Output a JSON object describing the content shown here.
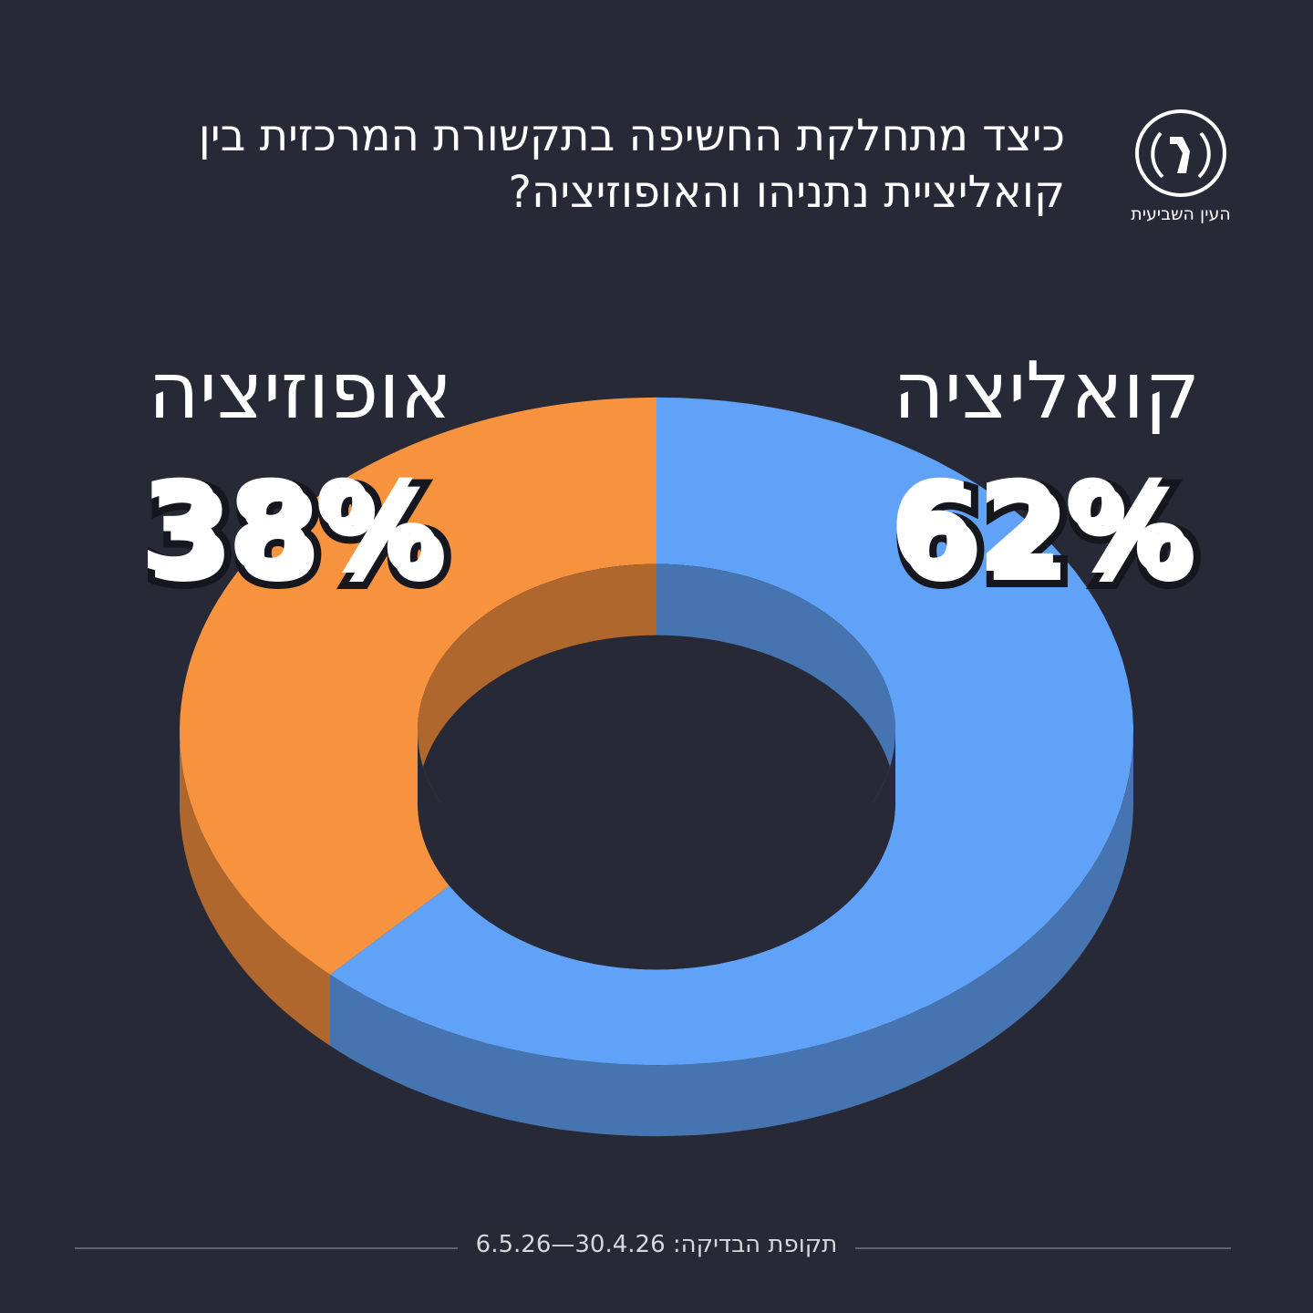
{
  "title_line1": "כיצד מתחלקת החשיפה בתקשורת המרכזית בין",
  "title_line2": "קואליציית נתניהו והאופוזיציה?",
  "logo_text": "העין השביעית",
  "footer": {
    "label": "תקופת הבדיקה:",
    "range": "30.4.26—6.5.26"
  },
  "colors": {
    "background": "#282936",
    "coalition_top": "#60a2f7",
    "coalition_side": "#4574b0",
    "opposition_top": "#f7923e",
    "opposition_side": "#b0672d"
  },
  "chart_data": {
    "type": "pie",
    "style": "3d-donut",
    "categories": [
      "קואליציה",
      "אופוזיציה"
    ],
    "values": [
      62,
      38
    ],
    "value_labels": [
      "62%",
      "38%"
    ]
  }
}
